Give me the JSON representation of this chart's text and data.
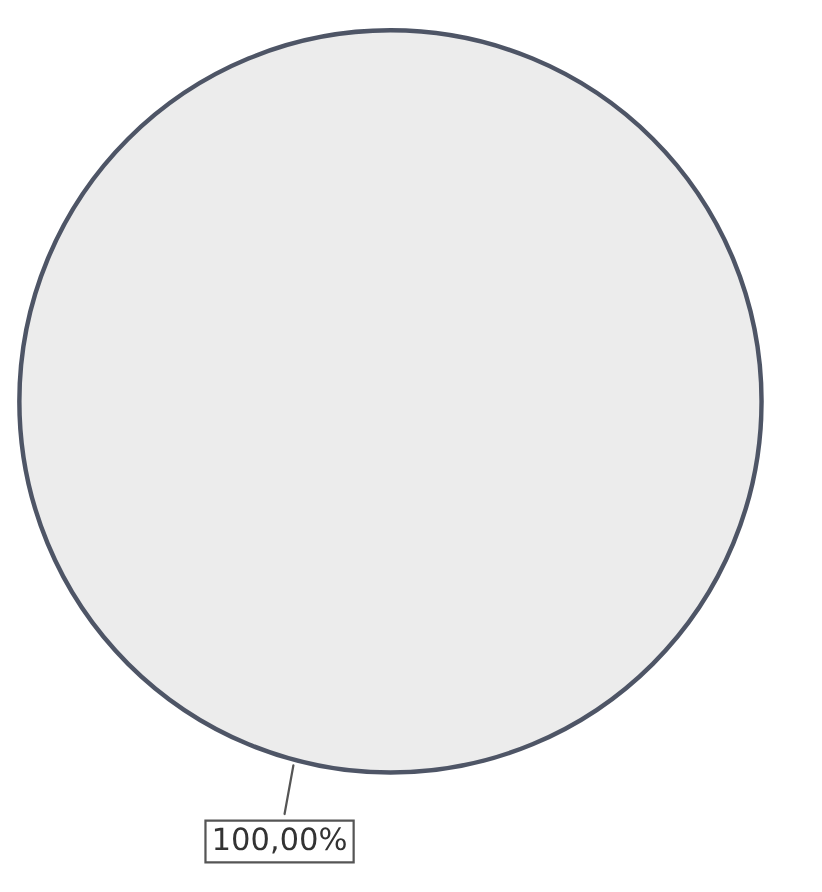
{
  "chart_data": {
    "type": "pie",
    "categories": [
      null
    ],
    "values": [
      100
    ],
    "colors": [
      "#ececec"
    ],
    "value_labels": [
      "100,00%"
    ]
  }
}
